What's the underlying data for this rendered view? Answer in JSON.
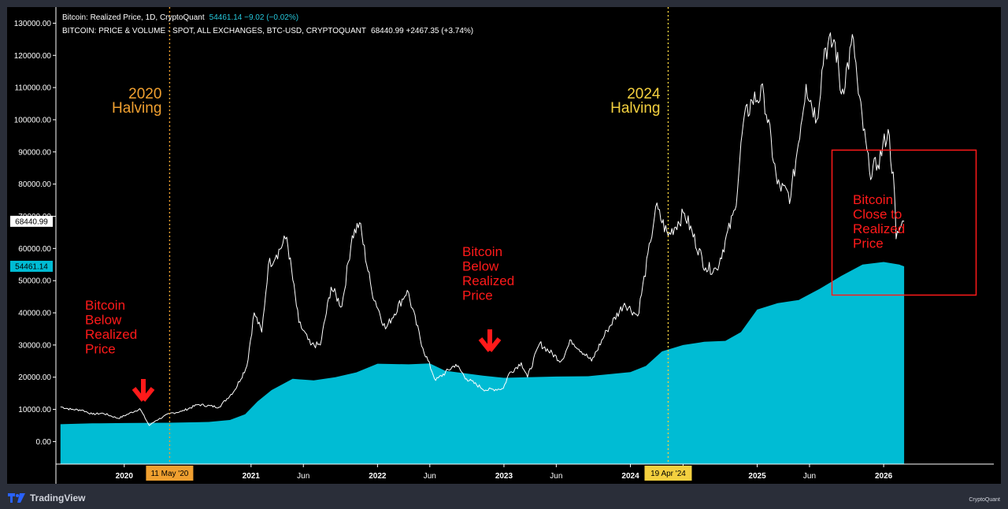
{
  "legend": {
    "line1_name": "Bitcoin: Realized Price, 1D, CryptoQuant",
    "line1_values": "54461.14  −9.02 (−0.02%)",
    "line1_color": "#26c6da",
    "line2_name": "BITCOIN: PRICE & VOLUME - SPOT, ALL EXCHANGES, BTC-USD, CRYPTOQUANT",
    "line2_values": "68440.99  +2467.35 (+3.74%)",
    "line2_color": "#ffffff"
  },
  "price_tags": {
    "price": "68440.99",
    "realized": "54461.14"
  },
  "halvings": {
    "h2020_title": "2020",
    "h2020_sub": "Halving",
    "h2020_tag": "11 May '20",
    "h2020_color": "#f0a030",
    "h2024_title": "2024",
    "h2024_sub": "Halving",
    "h2024_tag": "19 Apr '24",
    "h2024_color": "#f4d03f"
  },
  "annotations": {
    "a1": [
      "Bitcoin",
      "Below",
      "Realized",
      "Price"
    ],
    "a2": [
      "Bitcoin",
      "Below",
      "Realized",
      "Price"
    ],
    "a3": [
      "Bitcoin",
      "Close to",
      "Realized",
      "Price"
    ],
    "color": "#ff1a1a"
  },
  "branding": {
    "tradingview": "TradingView",
    "cryptoquant": "CryptoQuant"
  },
  "chart_data": {
    "type": "area",
    "y_ticks": [
      "130000.00",
      "120000.00",
      "110000.00",
      "100000.00",
      "90000.00",
      "80000.00",
      "70000.00",
      "60000.00",
      "50000.00",
      "40000.00",
      "30000.00",
      "20000.00",
      "10000.00",
      "0.00"
    ],
    "x_ticks": [
      "2020",
      "2021",
      "Jun",
      "2022",
      "Jun",
      "2023",
      "Jun",
      "2024",
      "Jun",
      "2025",
      "Jun",
      "2026"
    ],
    "ylim": [
      -7000,
      135000
    ],
    "xlim": [
      "2019-06-20",
      "2026-11-15"
    ],
    "grid": false,
    "series": [
      {
        "name": "Bitcoin: Realized Price",
        "color": "#00bcd4",
        "points": [
          [
            "2019-07-01",
            5400
          ],
          [
            "2019-10-01",
            5650
          ],
          [
            "2020-01-01",
            5750
          ],
          [
            "2020-05-11",
            5850
          ],
          [
            "2020-09-01",
            6100
          ],
          [
            "2020-11-01",
            6700
          ],
          [
            "2020-12-15",
            8500
          ],
          [
            "2021-01-20",
            12500
          ],
          [
            "2021-03-01",
            16000
          ],
          [
            "2021-05-01",
            19500
          ],
          [
            "2021-07-01",
            19000
          ],
          [
            "2021-09-01",
            20000
          ],
          [
            "2021-11-01",
            21500
          ],
          [
            "2022-01-01",
            24200
          ],
          [
            "2022-04-01",
            24000
          ],
          [
            "2022-06-01",
            24300
          ],
          [
            "2022-07-15",
            22000
          ],
          [
            "2022-11-01",
            20500
          ],
          [
            "2023-01-01",
            19800
          ],
          [
            "2023-06-01",
            20200
          ],
          [
            "2023-09-01",
            20300
          ],
          [
            "2024-01-01",
            21600
          ],
          [
            "2024-02-15",
            23500
          ],
          [
            "2024-04-01",
            28000
          ],
          [
            "2024-06-01",
            30000
          ],
          [
            "2024-08-01",
            31000
          ],
          [
            "2024-10-01",
            31300
          ],
          [
            "2024-11-15",
            34000
          ],
          [
            "2025-01-01",
            41000
          ],
          [
            "2025-03-01",
            43000
          ],
          [
            "2025-05-01",
            44000
          ],
          [
            "2025-07-01",
            47500
          ],
          [
            "2025-09-01",
            51500
          ],
          [
            "2025-11-01",
            55000
          ],
          [
            "2026-01-01",
            55800
          ],
          [
            "2026-02-15",
            55000
          ],
          [
            "2026-03-01",
            54461
          ]
        ]
      },
      {
        "name": "Bitcoin Price",
        "color": "#ffffff",
        "points": [
          [
            "2019-07-01",
            10800
          ],
          [
            "2019-08-01",
            10000
          ],
          [
            "2019-09-01",
            9800
          ],
          [
            "2019-10-01",
            8500
          ],
          [
            "2019-11-01",
            8800
          ],
          [
            "2019-12-15",
            7200
          ],
          [
            "2020-01-15",
            8700
          ],
          [
            "2020-02-15",
            10200
          ],
          [
            "2020-03-13",
            5000
          ],
          [
            "2020-04-01",
            6500
          ],
          [
            "2020-05-11",
            8700
          ],
          [
            "2020-06-15",
            9400
          ],
          [
            "2020-08-01",
            11500
          ],
          [
            "2020-10-01",
            10700
          ],
          [
            "2020-11-15",
            16000
          ],
          [
            "2020-12-20",
            23500
          ],
          [
            "2021-01-10",
            40000
          ],
          [
            "2021-02-01",
            34000
          ],
          [
            "2021-02-20",
            55000
          ],
          [
            "2021-03-15",
            58000
          ],
          [
            "2021-04-14",
            63500
          ],
          [
            "2021-05-19",
            37000
          ],
          [
            "2021-06-22",
            30000
          ],
          [
            "2021-07-20",
            30000
          ],
          [
            "2021-08-20",
            48000
          ],
          [
            "2021-09-20",
            42000
          ],
          [
            "2021-10-20",
            64000
          ],
          [
            "2021-11-10",
            68000
          ],
          [
            "2021-12-15",
            47000
          ],
          [
            "2022-01-24",
            35000
          ],
          [
            "2022-03-28",
            47000
          ],
          [
            "2022-05-12",
            29000
          ],
          [
            "2022-06-18",
            19000
          ],
          [
            "2022-08-15",
            24000
          ],
          [
            "2022-09-15",
            19500
          ],
          [
            "2022-11-09",
            16000
          ],
          [
            "2022-12-30",
            16500
          ],
          [
            "2023-01-15",
            21000
          ],
          [
            "2023-02-20",
            24500
          ],
          [
            "2023-03-10",
            20000
          ],
          [
            "2023-04-14",
            30500
          ],
          [
            "2023-06-15",
            25000
          ],
          [
            "2023-07-14",
            31500
          ],
          [
            "2023-09-11",
            25000
          ],
          [
            "2023-10-25",
            34500
          ],
          [
            "2023-12-15",
            43000
          ],
          [
            "2024-01-22",
            39000
          ],
          [
            "2024-02-28",
            62000
          ],
          [
            "2024-03-14",
            73000
          ],
          [
            "2024-04-19",
            64000
          ],
          [
            "2024-06-05",
            71000
          ],
          [
            "2024-08-05",
            54000
          ],
          [
            "2024-09-06",
            53500
          ],
          [
            "2024-10-29",
            72000
          ],
          [
            "2024-11-22",
            99000
          ],
          [
            "2024-12-17",
            106000
          ],
          [
            "2025-01-20",
            108000
          ],
          [
            "2025-02-28",
            80000
          ],
          [
            "2025-04-08",
            76000
          ],
          [
            "2025-05-22",
            111000
          ],
          [
            "2025-06-22",
            100000
          ],
          [
            "2025-07-14",
            122000
          ],
          [
            "2025-08-14",
            124000
          ],
          [
            "2025-09-01",
            108000
          ],
          [
            "2025-10-06",
            125000
          ],
          [
            "2025-10-20",
            108000
          ],
          [
            "2025-11-21",
            84000
          ],
          [
            "2025-12-15",
            86000
          ],
          [
            "2026-01-14",
            97000
          ],
          [
            "2026-02-01",
            78000
          ],
          [
            "2026-02-06",
            63000
          ],
          [
            "2026-02-20",
            67000
          ],
          [
            "2026-03-01",
            68441
          ]
        ]
      }
    ],
    "annotations": [
      "2020 Halving",
      "2024 Halving",
      "Bitcoin Below Realized Price",
      "Bitcoin Below Realized Price",
      "Bitcoin Close to Realized Price"
    ]
  }
}
